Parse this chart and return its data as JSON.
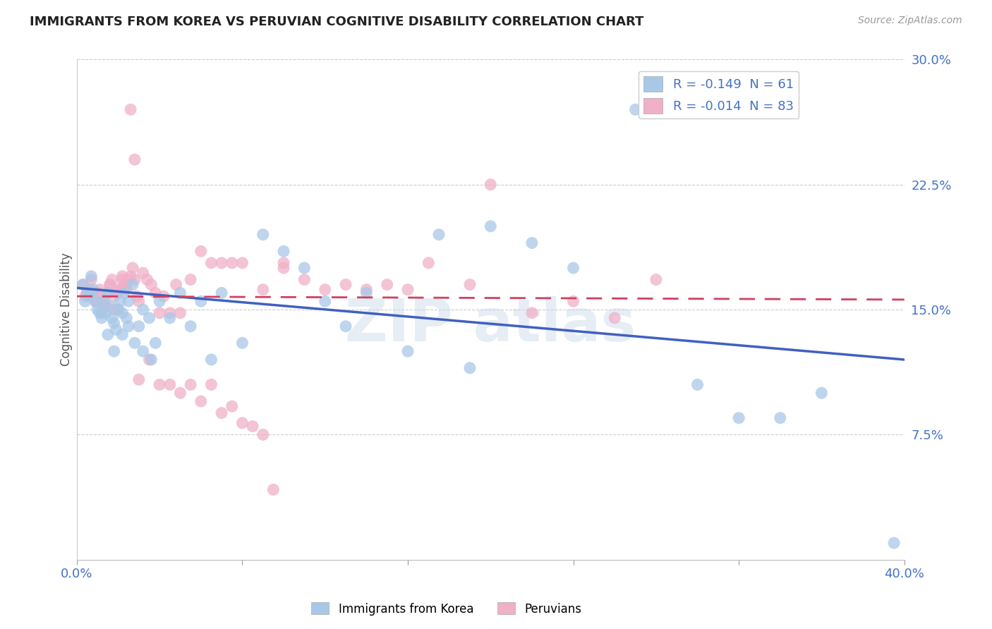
{
  "title": "IMMIGRANTS FROM KOREA VS PERUVIAN COGNITIVE DISABILITY CORRELATION CHART",
  "source": "Source: ZipAtlas.com",
  "ylabel": "Cognitive Disability",
  "xlim": [
    0.0,
    0.4
  ],
  "ylim": [
    0.0,
    0.3
  ],
  "xticks": [
    0.0,
    0.08,
    0.16,
    0.24,
    0.32,
    0.4
  ],
  "xtick_labels": [
    "0.0%",
    "",
    "",
    "",
    "",
    "40.0%"
  ],
  "yticks": [
    0.075,
    0.15,
    0.225,
    0.3
  ],
  "ytick_labels": [
    "7.5%",
    "15.0%",
    "22.5%",
    "30.0%"
  ],
  "korea_R": -0.149,
  "korea_N": 61,
  "peru_R": -0.014,
  "peru_N": 83,
  "korea_color": "#a8c8e8",
  "peru_color": "#f0b0c8",
  "korea_line_color": "#4060c0",
  "peru_line_color": "#d04060",
  "korea_x": [
    0.003,
    0.004,
    0.005,
    0.006,
    0.007,
    0.008,
    0.009,
    0.01,
    0.011,
    0.012,
    0.013,
    0.014,
    0.015,
    0.016,
    0.017,
    0.018,
    0.019,
    0.02,
    0.021,
    0.022,
    0.023,
    0.024,
    0.025,
    0.027,
    0.03,
    0.032,
    0.035,
    0.038,
    0.04,
    0.045,
    0.05,
    0.055,
    0.06,
    0.065,
    0.07,
    0.08,
    0.09,
    0.1,
    0.11,
    0.12,
    0.13,
    0.14,
    0.16,
    0.175,
    0.19,
    0.2,
    0.22,
    0.24,
    0.27,
    0.3,
    0.32,
    0.34,
    0.36,
    0.395,
    0.015,
    0.018,
    0.022,
    0.025,
    0.028,
    0.032,
    0.036
  ],
  "korea_y": [
    0.165,
    0.155,
    0.16,
    0.158,
    0.17,
    0.162,
    0.155,
    0.15,
    0.148,
    0.145,
    0.155,
    0.148,
    0.16,
    0.152,
    0.145,
    0.142,
    0.138,
    0.15,
    0.155,
    0.148,
    0.16,
    0.145,
    0.155,
    0.165,
    0.14,
    0.15,
    0.145,
    0.13,
    0.155,
    0.145,
    0.16,
    0.14,
    0.155,
    0.12,
    0.16,
    0.13,
    0.195,
    0.185,
    0.175,
    0.155,
    0.14,
    0.16,
    0.125,
    0.195,
    0.115,
    0.2,
    0.19,
    0.175,
    0.27,
    0.105,
    0.085,
    0.085,
    0.1,
    0.01,
    0.135,
    0.125,
    0.135,
    0.14,
    0.13,
    0.125,
    0.12
  ],
  "peru_x": [
    0.003,
    0.004,
    0.005,
    0.006,
    0.007,
    0.008,
    0.009,
    0.01,
    0.011,
    0.012,
    0.013,
    0.014,
    0.015,
    0.016,
    0.017,
    0.018,
    0.019,
    0.02,
    0.021,
    0.022,
    0.023,
    0.024,
    0.025,
    0.026,
    0.027,
    0.028,
    0.029,
    0.03,
    0.032,
    0.034,
    0.036,
    0.038,
    0.04,
    0.042,
    0.045,
    0.048,
    0.05,
    0.055,
    0.06,
    0.065,
    0.07,
    0.075,
    0.08,
    0.09,
    0.1,
    0.11,
    0.12,
    0.13,
    0.14,
    0.15,
    0.16,
    0.17,
    0.19,
    0.2,
    0.22,
    0.24,
    0.26,
    0.28,
    0.01,
    0.012,
    0.014,
    0.016,
    0.018,
    0.02,
    0.022,
    0.024,
    0.026,
    0.028,
    0.03,
    0.035,
    0.04,
    0.045,
    0.05,
    0.055,
    0.06,
    0.065,
    0.07,
    0.075,
    0.08,
    0.085,
    0.09,
    0.095,
    0.1
  ],
  "peru_y": [
    0.165,
    0.158,
    0.16,
    0.162,
    0.168,
    0.158,
    0.155,
    0.16,
    0.162,
    0.158,
    0.155,
    0.152,
    0.16,
    0.165,
    0.168,
    0.158,
    0.162,
    0.15,
    0.162,
    0.17,
    0.165,
    0.162,
    0.168,
    0.17,
    0.175,
    0.168,
    0.158,
    0.155,
    0.172,
    0.168,
    0.165,
    0.16,
    0.148,
    0.158,
    0.148,
    0.165,
    0.148,
    0.168,
    0.185,
    0.178,
    0.178,
    0.178,
    0.178,
    0.162,
    0.175,
    0.168,
    0.162,
    0.165,
    0.162,
    0.165,
    0.162,
    0.178,
    0.165,
    0.225,
    0.148,
    0.155,
    0.145,
    0.168,
    0.155,
    0.148,
    0.152,
    0.165,
    0.15,
    0.16,
    0.168,
    0.165,
    0.27,
    0.24,
    0.108,
    0.12,
    0.105,
    0.105,
    0.1,
    0.105,
    0.095,
    0.105,
    0.088,
    0.092,
    0.082,
    0.08,
    0.075,
    0.042,
    0.178
  ]
}
